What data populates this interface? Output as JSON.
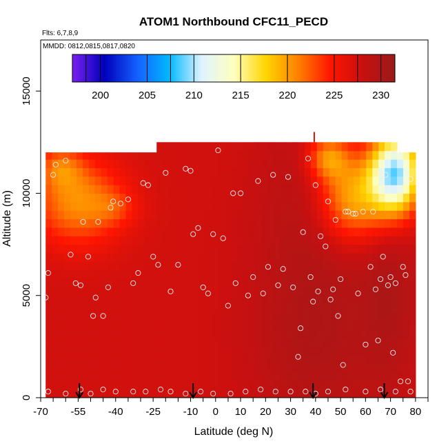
{
  "chart_data": {
    "type": "heatmap",
    "title": "ATOM1 Northbound CFC11_PECD",
    "flights_note": "Flts: 6,7,8,9",
    "dates_note": "MMDD: 0812,0815,0817,0820",
    "xlabel": "Latitude (deg N)",
    "ylabel": "Altitude (m)",
    "xlim": [
      -70,
      85
    ],
    "ylim": [
      0,
      17500
    ],
    "x_ticks": [
      -70,
      -55,
      -40,
      -25,
      -10,
      0,
      10,
      20,
      30,
      40,
      50,
      60,
      70,
      80
    ],
    "y_ticks": [
      0,
      5000,
      10000,
      15000
    ],
    "colorbar": {
      "range": [
        197,
        231.5
      ],
      "ticks": [
        200,
        205,
        210,
        215,
        220,
        225,
        230
      ],
      "colors": [
        "#7a1fef",
        "#0000bb",
        "#1560ff",
        "#00b8ff",
        "#dff3ff",
        "#ffffc0",
        "#ffd500",
        "#ff8000",
        "#ff1500",
        "#c81010",
        "#9b1a1a"
      ]
    },
    "field": {
      "extent_x": [
        -68,
        80
      ],
      "extent_y": [
        0,
        12000
      ],
      "top_step": {
        "x_from": -23,
        "x_to": 72,
        "top": 12500
      },
      "spike": {
        "x": 39.5,
        "top": 13000
      },
      "base_value": 227.5,
      "anomalies": [
        {
          "x": -55,
          "y": 9600,
          "sx": 13,
          "sy": 1500,
          "d": -7
        },
        {
          "x": -62,
          "y": 11300,
          "sx": 6,
          "sy": 700,
          "d": -4
        },
        {
          "x": -40,
          "y": 9300,
          "sx": 6,
          "sy": 600,
          "d": -2
        },
        {
          "x": 55,
          "y": 9800,
          "sx": 10,
          "sy": 1500,
          "d": -9
        },
        {
          "x": 72,
          "y": 11000,
          "sx": 7,
          "sy": 1400,
          "d": -18
        },
        {
          "x": 45,
          "y": 11800,
          "sx": 6,
          "sy": 800,
          "d": -7
        },
        {
          "x": 40,
          "y": 3500,
          "sx": 18,
          "sy": 4000,
          "d": 2.5
        },
        {
          "x": 40,
          "y": 10500,
          "sx": 15,
          "sy": 2500,
          "d": 1.5
        },
        {
          "x": 70,
          "y": 5000,
          "sx": 8,
          "sy": 3500,
          "d": 2
        }
      ]
    },
    "sample_points": [
      [
        -67,
        6100
      ],
      [
        -68,
        4900
      ],
      [
        -65,
        10900
      ],
      [
        -64,
        11400
      ],
      [
        -60,
        11600
      ],
      [
        -58,
        7000
      ],
      [
        -56,
        5600
      ],
      [
        -54,
        5500
      ],
      [
        -53,
        8600
      ],
      [
        -51,
        6900
      ],
      [
        -49,
        4000
      ],
      [
        -48,
        4900
      ],
      [
        -47,
        8600
      ],
      [
        -45,
        4000
      ],
      [
        -43,
        5400
      ],
      [
        -42,
        9300
      ],
      [
        -41,
        9600
      ],
      [
        -38,
        9500
      ],
      [
        -35,
        9700
      ],
      [
        -33,
        5600
      ],
      [
        -31,
        6100
      ],
      [
        -29,
        10500
      ],
      [
        -27,
        10400
      ],
      [
        -25,
        6900
      ],
      [
        -23,
        6500
      ],
      [
        -20,
        11000
      ],
      [
        -18,
        5200
      ],
      [
        -15,
        6500
      ],
      [
        -12,
        11200
      ],
      [
        -10,
        11100
      ],
      [
        -9,
        8000
      ],
      [
        -7,
        8300
      ],
      [
        -5,
        5400
      ],
      [
        -3,
        5100
      ],
      [
        -1,
        8000
      ],
      [
        1,
        12100
      ],
      [
        3,
        7800
      ],
      [
        5,
        4500
      ],
      [
        7,
        10000
      ],
      [
        8,
        5600
      ],
      [
        10,
        10000
      ],
      [
        13,
        5000
      ],
      [
        15,
        5900
      ],
      [
        17,
        10600
      ],
      [
        19,
        5100
      ],
      [
        21,
        6400
      ],
      [
        23,
        10900
      ],
      [
        25,
        5500
      ],
      [
        27,
        6300
      ],
      [
        29,
        10800
      ],
      [
        31,
        5400
      ],
      [
        33,
        2000
      ],
      [
        34,
        3400
      ],
      [
        35,
        8100
      ],
      [
        37,
        11700
      ],
      [
        38,
        5900
      ],
      [
        39,
        4700
      ],
      [
        40,
        10400
      ],
      [
        41,
        5200
      ],
      [
        42,
        7900
      ],
      [
        44,
        7400
      ],
      [
        45,
        9600
      ],
      [
        46,
        4800
      ],
      [
        47,
        5300
      ],
      [
        48,
        8700
      ],
      [
        49,
        4000
      ],
      [
        50,
        5800
      ],
      [
        51,
        1600
      ],
      [
        52,
        9100
      ],
      [
        53,
        9100
      ],
      [
        55,
        9000
      ],
      [
        56,
        9000
      ],
      [
        57,
        5100
      ],
      [
        59,
        9100
      ],
      [
        60,
        2600
      ],
      [
        62,
        6400
      ],
      [
        63,
        9100
      ],
      [
        64,
        5300
      ],
      [
        65,
        2800
      ],
      [
        66,
        5800
      ],
      [
        67,
        6900
      ],
      [
        68,
        10900
      ],
      [
        69,
        5500
      ],
      [
        70,
        5900
      ],
      [
        71,
        2200
      ],
      [
        72,
        5600
      ],
      [
        73,
        12000
      ],
      [
        74,
        800
      ],
      [
        75,
        6400
      ],
      [
        76,
        6000
      ],
      [
        77,
        800
      ],
      [
        78,
        10700
      ],
      [
        -67,
        300
      ],
      [
        -60,
        200
      ],
      [
        -54,
        400
      ],
      [
        -50,
        200
      ],
      [
        -45,
        400
      ],
      [
        -40,
        300
      ],
      [
        -33,
        300
      ],
      [
        -28,
        300
      ],
      [
        -22,
        400
      ],
      [
        -18,
        300
      ],
      [
        -12,
        200
      ],
      [
        -6,
        300
      ],
      [
        -1,
        200
      ],
      [
        6,
        200
      ],
      [
        12,
        300
      ],
      [
        18,
        400
      ],
      [
        24,
        300
      ],
      [
        30,
        300
      ],
      [
        36,
        300
      ],
      [
        40,
        200
      ],
      [
        45,
        300
      ],
      [
        52,
        400
      ],
      [
        60,
        300
      ],
      [
        66,
        400
      ],
      [
        72,
        300
      ],
      [
        78,
        300
      ]
    ],
    "arrow_latitudes": [
      -54.5,
      -9,
      39,
      67.5
    ]
  }
}
